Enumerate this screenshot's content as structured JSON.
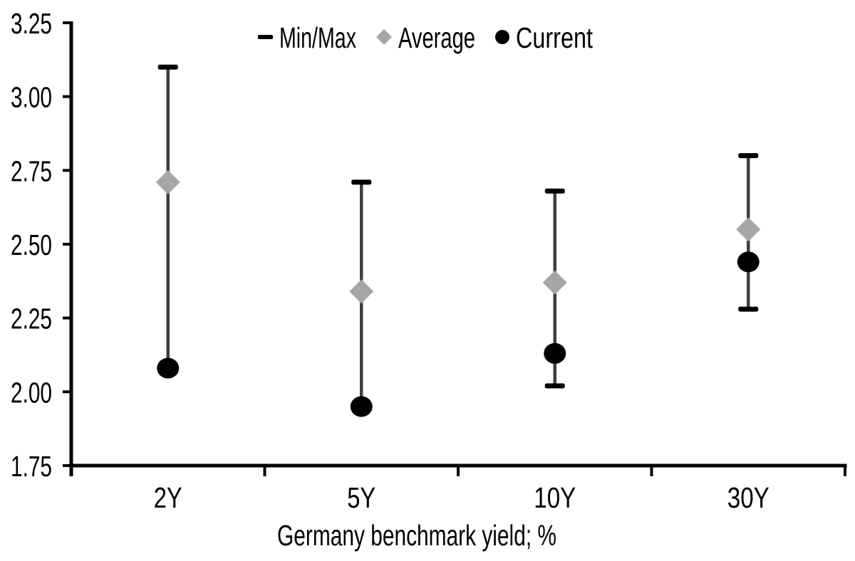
{
  "chart_data": {
    "type": "scatter",
    "subtype": "min-max-range-dot-plot",
    "title": "",
    "xlabel": "Germany benchmark yield; %",
    "ylabel": "",
    "ylim": [
      1.75,
      3.25
    ],
    "ytick_step": 0.25,
    "yticks": [
      "1.75",
      "2.00",
      "2.25",
      "2.50",
      "2.75",
      "3.00",
      "3.25"
    ],
    "categories": [
      "2Y",
      "5Y",
      "10Y",
      "30Y"
    ],
    "series": [
      {
        "name": "Min/Max",
        "marker": "dash",
        "role": "range",
        "min": [
          2.08,
          1.95,
          2.02,
          2.28
        ],
        "max": [
          3.1,
          2.71,
          2.68,
          2.8
        ]
      },
      {
        "name": "Average",
        "marker": "diamond",
        "role": "point",
        "values": [
          2.71,
          2.34,
          2.37,
          2.55
        ]
      },
      {
        "name": "Current",
        "marker": "circle",
        "role": "point",
        "values": [
          2.08,
          1.95,
          2.13,
          2.44
        ]
      }
    ],
    "legend_position": "top-center",
    "grid": false,
    "colors": {
      "axis": "#000000",
      "text": "#000000",
      "cap": "#000000",
      "range_line": "#3F3F3F",
      "average": "#A6A6A6",
      "current": "#000000",
      "background": "#FFFFFF"
    }
  }
}
